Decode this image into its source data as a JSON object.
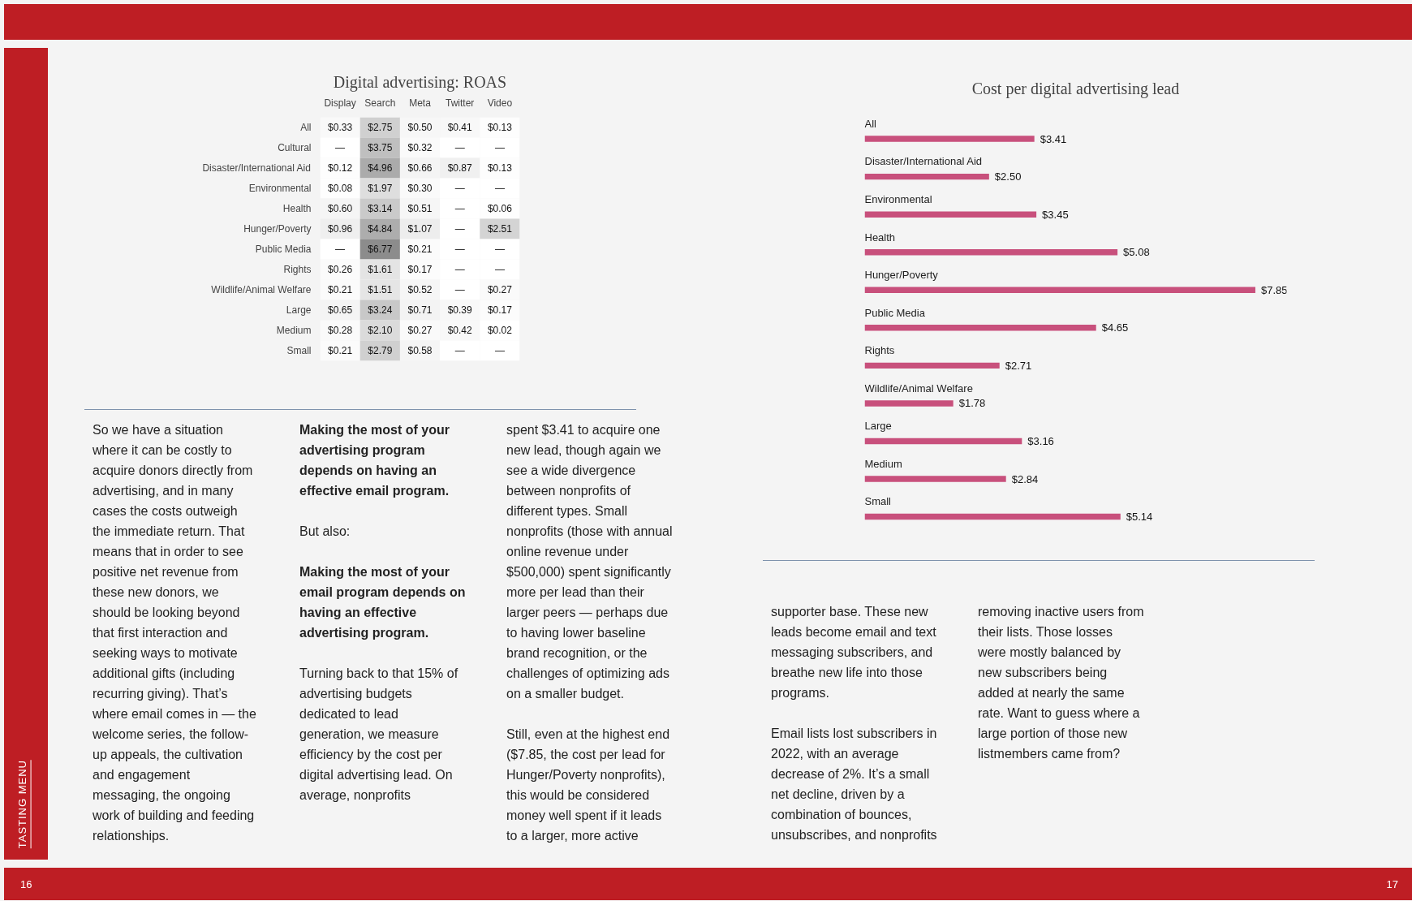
{
  "chart_data": [
    {
      "type": "heatmap",
      "title": "Digital advertising: ROAS",
      "categories": [
        "Display",
        "Search",
        "Meta",
        "Twitter",
        "Video"
      ],
      "y_categories": [
        "All",
        "Cultural",
        "Disaster/International Aid",
        "Environmental",
        "Health",
        "Hunger/Poverty",
        "Public Media",
        "Rights",
        "Wildlife/Animal Welfare",
        "Large",
        "Medium",
        "Small"
      ],
      "cells": [
        [
          0.33,
          2.75,
          0.5,
          0.41,
          0.13
        ],
        [
          null,
          3.75,
          0.32,
          null,
          null
        ],
        [
          0.12,
          4.96,
          0.66,
          0.87,
          0.13
        ],
        [
          0.08,
          1.97,
          0.3,
          null,
          null
        ],
        [
          0.6,
          3.14,
          0.51,
          null,
          0.06
        ],
        [
          0.96,
          4.84,
          1.07,
          null,
          2.51
        ],
        [
          null,
          6.77,
          0.21,
          null,
          null
        ],
        [
          0.26,
          1.61,
          0.17,
          null,
          null
        ],
        [
          0.21,
          1.51,
          0.52,
          null,
          0.27
        ],
        [
          0.65,
          3.24,
          0.71,
          0.39,
          0.17
        ],
        [
          0.28,
          2.1,
          0.27,
          0.42,
          0.02
        ],
        [
          0.21,
          2.79,
          0.58,
          null,
          null
        ]
      ],
      "cell_labels": [
        [
          "$0.33",
          "$2.75",
          "$0.50",
          "$0.41",
          "$0.13"
        ],
        [
          "—",
          "$3.75",
          "$0.32",
          "—",
          "—"
        ],
        [
          "$0.12",
          "$4.96",
          "$0.66",
          "$0.87",
          "$0.13"
        ],
        [
          "$0.08",
          "$1.97",
          "$0.30",
          "—",
          "—"
        ],
        [
          "$0.60",
          "$3.14",
          "$0.51",
          "—",
          "$0.06"
        ],
        [
          "$0.96",
          "$4.84",
          "$1.07",
          "—",
          "$2.51"
        ],
        [
          "—",
          "$6.77",
          "$0.21",
          "—",
          "—"
        ],
        [
          "$0.26",
          "$1.61",
          "$0.17",
          "—",
          "—"
        ],
        [
          "$0.21",
          "$1.51",
          "$0.52",
          "—",
          "$0.27"
        ],
        [
          "$0.65",
          "$3.24",
          "$0.71",
          "$0.39",
          "$0.17"
        ],
        [
          "$0.28",
          "$2.10",
          "$0.27",
          "$0.42",
          "$0.02"
        ],
        [
          "$0.21",
          "$2.79",
          "$0.58",
          "—",
          "—"
        ]
      ],
      "annotations": [
        "So we have a situation where it can be costly to acquire donors directly from advertising, and in many cases the costs outweigh the immediate return. That means that in order to see positive net revenue from these new donors, we should be looking beyond that first interaction and seeking ways to motivate additional gifts (including recurring giving). That’s where email comes in — the welcome series, the follow-up appeals, the cultivation and engagement messaging, the ongoing work of building and feeding relationships.",
        "Making the most of your advertising program depends on having an effective email program.",
        "But also:",
        "Making the most of your email program depends on having an effective advertising program.",
        "Turning back to that 15% of advertising budgets dedicated to lead generation, we measure efficiency by the cost per digital advertising lead. On average, nonprofits",
        "spent $3.41 to acquire one new lead, though again we see a wide divergence between nonprofits of different types. Small nonprofits (those with annual online revenue under $500,000) spent significantly more per lead than their larger peers — perhaps due to having lower baseline brand recognition, or the challenges of optimizing ads on a smaller budget.",
        "Still, even at the highest end ($7.85, the cost per lead for Hunger/Poverty nonprofits), this would be considered money well spent if it leads to a larger, more active",
        "TASTING MENU",
        "16"
      ]
    },
    {
      "type": "bar",
      "orientation": "horizontal",
      "title": "Cost per digital advertising lead",
      "color": "#c8507c",
      "categories": [
        "All",
        "Disaster/International Aid",
        "Environmental",
        "Health",
        "Hunger/Poverty",
        "Public Media",
        "Rights",
        "Wildlife/Animal Welfare",
        "Large",
        "Medium",
        "Small"
      ],
      "values": [
        3.41,
        2.5,
        3.45,
        5.08,
        7.85,
        4.65,
        2.71,
        1.78,
        3.16,
        2.84,
        5.14
      ],
      "value_labels": [
        "$3.41",
        "$2.50",
        "$3.45",
        "$5.08",
        "$7.85",
        "$4.65",
        "$2.71",
        "$1.78",
        "$3.16",
        "$2.84",
        "$5.14"
      ],
      "annotations": [
        "supporter base. These new leads become email and text messaging subscribers, and breathe new life into those programs.",
        "Email lists lost subscribers in 2022, with an average decrease of 2%. It’s a small net decline, driven by a combination of bounces, unsubscribes, and nonprofits",
        "removing inactive users from their lists. Those losses were mostly balanced by new subscribers being added at nearly the same rate. Want to guess where a large portion of those new listmembers came from?",
        "17"
      ]
    }
  ]
}
